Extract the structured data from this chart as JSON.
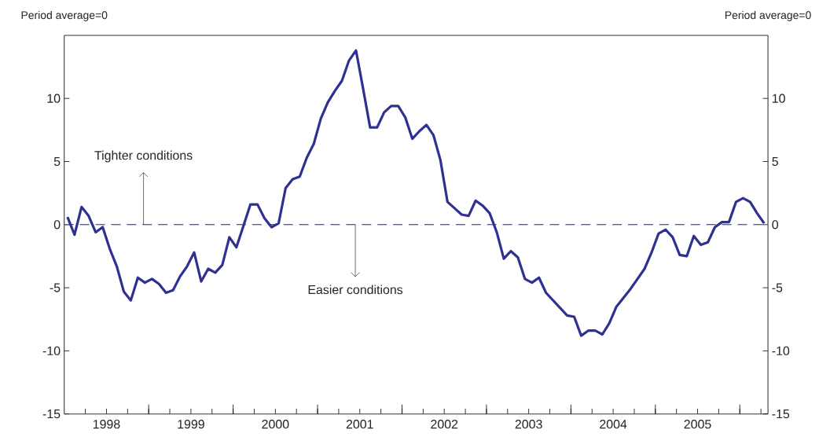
{
  "chart_data": {
    "type": "line",
    "ylabel": "Period average=0",
    "y2label": "Period average=0",
    "annotations": [
      {
        "text": "Tighter conditions",
        "x": "1998-12-09",
        "y": 0
      },
      {
        "text": "Easier conditions",
        "x": "2001-06-12",
        "y": 0
      }
    ],
    "x": [
      "1998-01-15",
      "1998-02-15",
      "1998-03-15",
      "1998-04-15",
      "1998-05-15",
      "1998-06-15",
      "1998-07-15",
      "1998-08-15",
      "1998-09-15",
      "1998-10-15",
      "1998-11-15",
      "1998-12-15",
      "1999-01-15",
      "1999-02-15",
      "1999-03-15",
      "1999-04-15",
      "1999-05-15",
      "1999-06-15",
      "1999-07-15",
      "1999-08-15",
      "1999-09-15",
      "1999-10-15",
      "1999-11-15",
      "1999-12-15",
      "2000-01-15",
      "2000-02-15",
      "2000-03-15",
      "2000-04-15",
      "2000-05-15",
      "2000-06-15",
      "2000-07-15",
      "2000-08-15",
      "2000-09-15",
      "2000-10-15",
      "2000-11-15",
      "2000-12-15",
      "2001-01-15",
      "2001-02-15",
      "2001-03-15",
      "2001-04-15",
      "2001-05-15",
      "2001-06-15",
      "2001-07-15",
      "2001-08-15",
      "2001-09-15",
      "2001-10-15",
      "2001-11-15",
      "2001-12-15",
      "2002-01-15",
      "2002-02-15",
      "2002-03-15",
      "2002-04-15",
      "2002-05-15",
      "2002-06-15",
      "2002-07-15",
      "2002-08-15",
      "2002-09-15",
      "2002-10-15",
      "2002-11-15",
      "2002-12-15",
      "2003-01-15",
      "2003-02-15",
      "2003-03-15",
      "2003-04-15",
      "2003-05-15",
      "2003-06-15",
      "2003-07-15",
      "2003-08-15",
      "2003-09-15",
      "2003-10-15",
      "2003-11-15",
      "2003-12-15",
      "2004-01-15",
      "2004-02-15",
      "2004-03-15",
      "2004-04-15",
      "2004-05-15",
      "2004-06-15",
      "2004-07-15",
      "2004-08-15",
      "2004-09-15",
      "2004-10-15",
      "2004-11-15",
      "2004-12-15",
      "2005-01-15",
      "2005-02-15",
      "2005-03-15",
      "2005-04-15",
      "2005-05-15",
      "2005-06-15",
      "2005-07-15",
      "2005-08-15",
      "2005-09-15",
      "2005-10-15",
      "2005-11-15",
      "2005-12-15",
      "2006-01-15",
      "2006-02-15",
      "2006-03-15",
      "2006-04-15"
    ],
    "series": [
      {
        "color": "#2e3192",
        "values": [
          0.6,
          -0.8,
          1.4,
          0.7,
          -0.6,
          -0.2,
          -1.9,
          -3.3,
          -5.3,
          -6.0,
          -4.2,
          -4.6,
          -4.3,
          -4.7,
          -5.4,
          -5.2,
          -4.1,
          -3.3,
          -2.2,
          -4.5,
          -3.5,
          -3.8,
          -3.2,
          -1.0,
          -1.8,
          -0.1,
          1.6,
          1.6,
          0.5,
          -0.2,
          0.1,
          2.9,
          3.6,
          3.8,
          5.3,
          6.4,
          8.4,
          9.7,
          10.6,
          11.4,
          13.0,
          13.8,
          10.8,
          7.7,
          7.7,
          8.9,
          9.4,
          9.4,
          8.5,
          6.8,
          7.4,
          7.9,
          7.1,
          5.1,
          1.8,
          1.3,
          0.8,
          0.7,
          1.9,
          1.5,
          0.9,
          -0.6,
          -2.7,
          -2.1,
          -2.6,
          -4.3,
          -4.6,
          -4.2,
          -5.4,
          -6.0,
          -6.6,
          -7.2,
          -7.3,
          -8.8,
          -8.4,
          -8.4,
          -8.7,
          -7.8,
          -6.5,
          -5.8,
          -5.1,
          -4.3,
          -3.5,
          -2.2,
          -0.7,
          -0.4,
          -1.0,
          -2.4,
          -2.5,
          -0.9,
          -1.6,
          -1.4,
          -0.2,
          0.2,
          0.2,
          1.8,
          2.1,
          1.8,
          0.9,
          0.1
        ]
      }
    ],
    "line_style": "solid",
    "ref_lines": [
      {
        "axis": "y",
        "value": 0,
        "color": "#5b5ba8",
        "line_style": "dashed"
      }
    ],
    "xlim": [
      "1998-01-01",
      "2006-05-01"
    ],
    "xticks": [
      {
        "value": "1998-04-01",
        "label": null
      },
      {
        "value": "1998-07-01",
        "label": "1998"
      },
      {
        "value": "1998-10-01",
        "label": null
      },
      {
        "value": "1999-01-01",
        "label": null
      },
      {
        "value": "1999-04-01",
        "label": null
      },
      {
        "value": "1999-07-01",
        "label": "1999"
      },
      {
        "value": "1999-10-01",
        "label": null
      },
      {
        "value": "2000-01-01",
        "label": null
      },
      {
        "value": "2000-04-01",
        "label": null
      },
      {
        "value": "2000-07-01",
        "label": "2000"
      },
      {
        "value": "2000-10-01",
        "label": null
      },
      {
        "value": "2001-01-01",
        "label": null
      },
      {
        "value": "2001-04-01",
        "label": null
      },
      {
        "value": "2001-07-01",
        "label": "2001"
      },
      {
        "value": "2001-10-01",
        "label": null
      },
      {
        "value": "2002-01-01",
        "label": null
      },
      {
        "value": "2002-04-01",
        "label": null
      },
      {
        "value": "2002-07-01",
        "label": "2002"
      },
      {
        "value": "2002-10-01",
        "label": null
      },
      {
        "value": "2003-01-01",
        "label": null
      },
      {
        "value": "2003-04-01",
        "label": null
      },
      {
        "value": "2003-07-01",
        "label": "2003"
      },
      {
        "value": "2003-10-01",
        "label": null
      },
      {
        "value": "2004-01-01",
        "label": null
      },
      {
        "value": "2004-04-01",
        "label": null
      },
      {
        "value": "2004-07-01",
        "label": "2004"
      },
      {
        "value": "2004-10-01",
        "label": null
      },
      {
        "value": "2005-01-01",
        "label": null
      },
      {
        "value": "2005-04-01",
        "label": null
      },
      {
        "value": "2005-07-01",
        "label": "2005"
      },
      {
        "value": "2005-10-01",
        "label": null
      },
      {
        "value": "2006-01-01",
        "label": null
      },
      {
        "value": "2006-04-01",
        "label": null
      }
    ],
    "ylim": [
      -15,
      15
    ],
    "yticks": [
      -15,
      -10,
      -5,
      0,
      5,
      10
    ],
    "y2lim": [
      -15,
      15
    ],
    "y2ticks": [
      -15,
      -10,
      -5,
      0,
      5,
      10
    ]
  }
}
